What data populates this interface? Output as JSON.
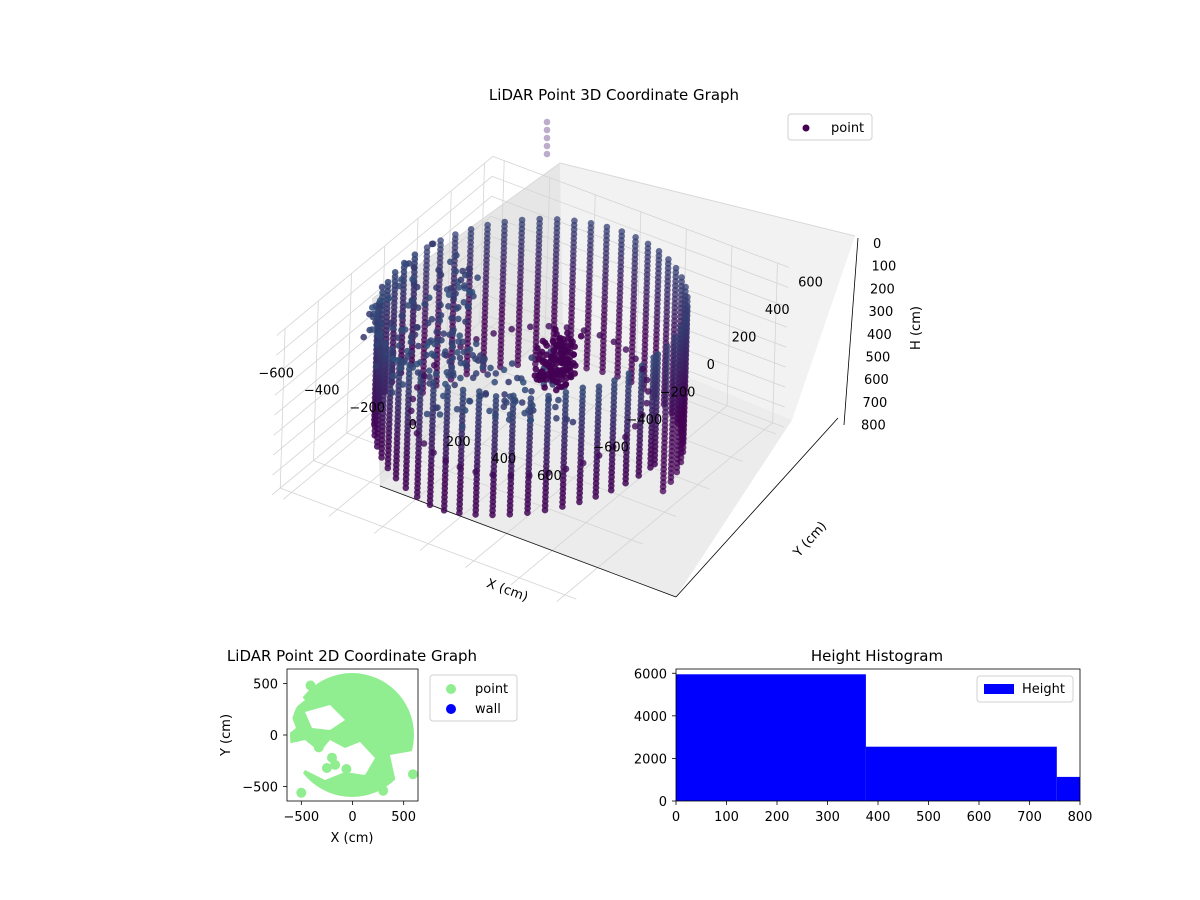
{
  "chart_data": [
    {
      "type": "scatter",
      "projection": "3d",
      "title": "LiDAR Point 3D Coordinate Graph",
      "xlabel": "X (cm)",
      "ylabel": "Y (cm)",
      "zlabel": "H (cm)",
      "x_ticks": [
        "−600",
        "−400",
        "−200",
        "0",
        "200",
        "400",
        "600"
      ],
      "y_ticks": [
        "−600",
        "−400",
        "−200",
        "0",
        "200",
        "400",
        "600"
      ],
      "z_ticks": [
        "0",
        "100",
        "200",
        "300",
        "400",
        "500",
        "600",
        "700",
        "800"
      ],
      "xlim": [
        -650,
        650
      ],
      "ylim": [
        -650,
        650
      ],
      "zlim": [
        800,
        0
      ],
      "z_inverted": true,
      "colormap": "viridis",
      "grid": true,
      "legend": {
        "placement": "top-right",
        "entries": [
          {
            "label": "point",
            "color": "#440154"
          }
        ]
      },
      "series": [
        {
          "name": "point",
          "shape": "cylindrical wall of points, radius ~550 cm, spanning H 0 to 800 cm, with a cluster near x -150, y 400",
          "radius": 550
        }
      ]
    },
    {
      "type": "scatter",
      "title": "LiDAR Point 2D Coordinate Graph",
      "xlabel": "X (cm)",
      "ylabel": "Y (cm)",
      "x_ticks": [
        "−500",
        "0",
        "500"
      ],
      "y_ticks": [
        "500",
        "0",
        "−500"
      ],
      "xlim": [
        -640,
        640
      ],
      "ylim": [
        -640,
        640
      ],
      "legend": {
        "placement": "outside-right",
        "entries": [
          {
            "label": "point",
            "color": "#90ee90"
          },
          {
            "label": "wall",
            "color": "#0000ff"
          }
        ]
      },
      "series": [
        {
          "name": "point",
          "color": "#90ee90",
          "region": "dense disc radius ~550 cm with notches on the left side"
        },
        {
          "name": "wall",
          "color": "#0000ff",
          "points": []
        }
      ]
    },
    {
      "type": "bar",
      "subtype": "histogram",
      "title": "Height Histogram",
      "xlim": [
        0,
        800
      ],
      "ylim": [
        0,
        6200
      ],
      "x_ticks": [
        "0",
        "100",
        "200",
        "300",
        "400",
        "500",
        "600",
        "700",
        "800"
      ],
      "y_ticks": [
        "0",
        "2000",
        "4000",
        "6000"
      ],
      "legend": {
        "placement": "top-right",
        "entries": [
          {
            "label": "Height",
            "color": "#0000ff"
          }
        ]
      },
      "series": [
        {
          "name": "Height",
          "color": "#0000ff",
          "bins": [
            {
              "start": 0,
              "end": 376,
              "count": 5950
            },
            {
              "start": 376,
              "end": 754,
              "count": 2550
            },
            {
              "start": 754,
              "end": 800,
              "count": 1130
            }
          ]
        }
      ]
    }
  ]
}
